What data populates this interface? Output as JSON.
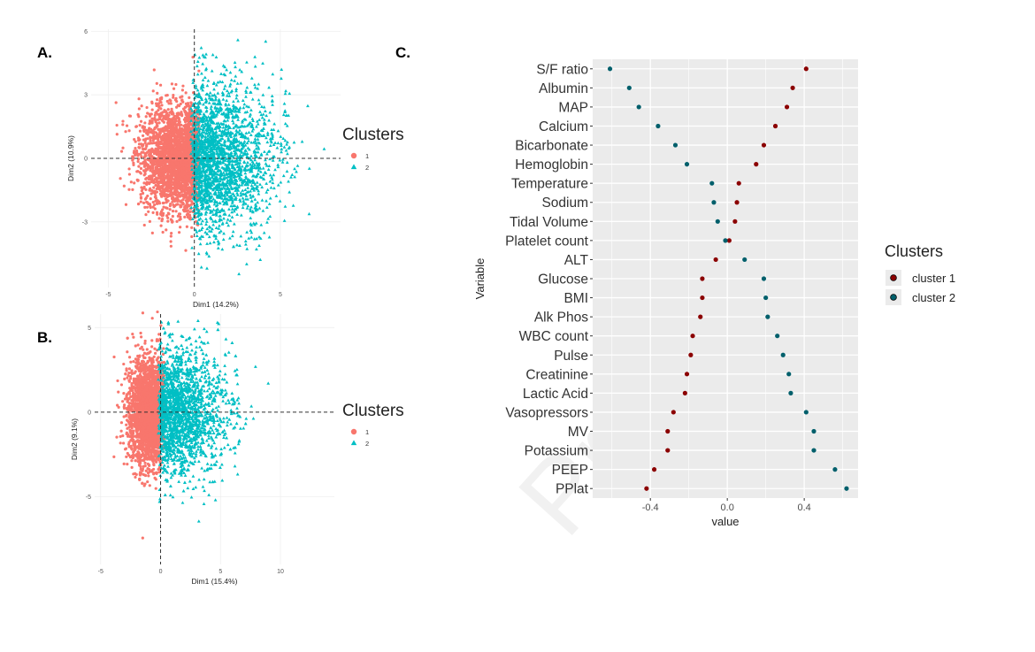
{
  "panels": {
    "a": "A.",
    "b": "B.",
    "c": "C."
  },
  "watermark": "Pre-proof",
  "colors": {
    "cluster1": "#F8766D",
    "cluster2": "#00BFC4",
    "dot1": "#8B0000",
    "dot2": "#005F6B",
    "panel_bg": "#EBEBEB",
    "grid": "#FFFFFF"
  },
  "chart_data": [
    {
      "type": "scatter",
      "panel": "A.",
      "xlabel": "Dim1 (14.2%)",
      "ylabel": "Dim2 (10.9%)",
      "xlim": [
        -6,
        8.5
      ],
      "ylim": [
        -6.1,
        6.1
      ],
      "xticks": [
        -5,
        0,
        5
      ],
      "yticks": [
        -3,
        0,
        3,
        6
      ],
      "legend": {
        "title": "Clusters",
        "entries": [
          "1",
          "2"
        ],
        "position": "right"
      },
      "series": [
        {
          "name": "1",
          "shape": "circle",
          "color": "#F8766D"
        },
        {
          "name": "2",
          "shape": "triangle",
          "color": "#00BFC4"
        }
      ]
    },
    {
      "type": "scatter",
      "panel": "B.",
      "xlabel": "Dim1 (15.4%)",
      "ylabel": "Dim2 (9.1%)",
      "xlim": [
        -5.5,
        14.5
      ],
      "ylim": [
        -9,
        5.8
      ],
      "xticks": [
        -5,
        0,
        5,
        10
      ],
      "yticks": [
        -5,
        0,
        5
      ],
      "legend": {
        "title": "Clusters",
        "entries": [
          "1",
          "2"
        ],
        "position": "right"
      },
      "series": [
        {
          "name": "1",
          "shape": "circle",
          "color": "#F8766D"
        },
        {
          "name": "2",
          "shape": "triangle",
          "color": "#00BFC4"
        }
      ]
    },
    {
      "type": "scatter",
      "panel": "C.",
      "xlabel": "value",
      "ylabel": "Variable",
      "xlim": [
        -0.7,
        0.68
      ],
      "xticks": [
        "-0.4",
        "0.0",
        "0.4"
      ],
      "legend": {
        "title": "Clusters",
        "entries": [
          "cluster 1",
          "cluster 2"
        ],
        "position": "right"
      },
      "categories": [
        "S/F ratio",
        "Albumin",
        "MAP",
        "Calcium",
        "Bicarbonate",
        "Hemoglobin",
        "Temperature",
        "Sodium",
        "Tidal Volume",
        "Platelet count",
        "ALT",
        "Glucose",
        "BMI",
        "Alk Phos",
        "WBC count",
        "Pulse",
        "Creatinine",
        "Lactic Acid",
        "Vasopressors",
        "MV",
        "Potassium",
        "PEEP",
        "PPlat"
      ],
      "series": [
        {
          "name": "cluster 1",
          "values": [
            0.41,
            0.34,
            0.31,
            0.25,
            0.19,
            0.15,
            0.06,
            0.05,
            0.04,
            0.01,
            -0.06,
            -0.13,
            -0.13,
            -0.14,
            -0.18,
            -0.19,
            -0.21,
            -0.22,
            -0.28,
            -0.31,
            -0.31,
            -0.38,
            -0.42
          ]
        },
        {
          "name": "cluster 2",
          "values": [
            -0.61,
            -0.51,
            -0.46,
            -0.36,
            -0.27,
            -0.21,
            -0.08,
            -0.07,
            -0.05,
            -0.01,
            0.09,
            0.19,
            0.2,
            0.21,
            0.26,
            0.29,
            0.32,
            0.33,
            0.41,
            0.45,
            0.45,
            0.56,
            0.62
          ]
        }
      ]
    }
  ]
}
